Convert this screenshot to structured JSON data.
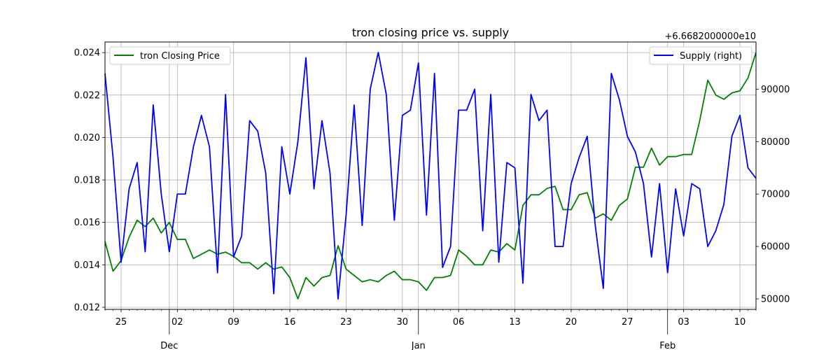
{
  "chart_data": {
    "type": "line",
    "title": "tron closing price vs. supply",
    "offset_label": "+6.6682000000e10",
    "grid": true,
    "x_start_date": "2023-11-23",
    "x_end_date": "2024-02-12",
    "x_ticks": [
      {
        "date": "2023-11-25",
        "label": "25"
      },
      {
        "date": "2023-12-02",
        "label": "02"
      },
      {
        "date": "2023-12-09",
        "label": "09"
      },
      {
        "date": "2023-12-16",
        "label": "16"
      },
      {
        "date": "2023-12-23",
        "label": "23"
      },
      {
        "date": "2023-12-30",
        "label": "30"
      },
      {
        "date": "2024-01-06",
        "label": "06"
      },
      {
        "date": "2024-01-13",
        "label": "13"
      },
      {
        "date": "2024-01-20",
        "label": "20"
      },
      {
        "date": "2024-01-27",
        "label": "27"
      },
      {
        "date": "2024-02-03",
        "label": "03"
      },
      {
        "date": "2024-02-10",
        "label": "10"
      }
    ],
    "x_month_labels": [
      {
        "date": "2023-12-01",
        "label": "Dec"
      },
      {
        "date": "2024-01-01",
        "label": "Jan"
      },
      {
        "date": "2024-02-01",
        "label": "Feb"
      }
    ],
    "y_left": {
      "ylim": [
        0.0119,
        0.0245
      ],
      "ticks": [
        0.012,
        0.014,
        0.016,
        0.018,
        0.02,
        0.022,
        0.024
      ],
      "tick_labels": [
        "0.012",
        "0.014",
        "0.016",
        "0.018",
        "0.020",
        "0.022",
        "0.024"
      ]
    },
    "y_right": {
      "ylim": [
        48000,
        99000
      ],
      "ticks": [
        50000,
        60000,
        70000,
        80000,
        90000
      ],
      "tick_labels": [
        "50000",
        "60000",
        "70000",
        "80000",
        "90000"
      ]
    },
    "series": [
      {
        "name": "tron Closing Price",
        "axis": "left",
        "color": "#008000",
        "legend_position": "top-left",
        "values": [
          0.0151,
          0.0137,
          0.0142,
          0.0153,
          0.0161,
          0.0158,
          0.0162,
          0.0155,
          0.016,
          0.0152,
          0.0152,
          0.0143,
          0.0145,
          0.0147,
          0.0145,
          0.0146,
          0.0144,
          0.0141,
          0.0141,
          0.0138,
          0.0141,
          0.0138,
          0.0139,
          0.0134,
          0.0124,
          0.0134,
          0.013,
          0.0134,
          0.0135,
          0.0149,
          0.0138,
          0.0135,
          0.0132,
          0.0133,
          0.0132,
          0.0135,
          0.0137,
          0.0133,
          0.0133,
          0.0132,
          0.0128,
          0.0134,
          0.0134,
          0.0135,
          0.0147,
          0.0144,
          0.014,
          0.014,
          0.0147,
          0.0146,
          0.015,
          0.0147,
          0.0168,
          0.0173,
          0.0173,
          0.0176,
          0.0177,
          0.0166,
          0.0166,
          0.0173,
          0.0174,
          0.0162,
          0.0164,
          0.0161,
          0.0168,
          0.0171,
          0.0186,
          0.0186,
          0.0195,
          0.0187,
          0.0191,
          0.0191,
          0.0192,
          0.0192,
          0.0208,
          0.0227,
          0.022,
          0.0218,
          0.0221,
          0.0222,
          0.0228,
          0.024
        ]
      },
      {
        "name": "Supply (right)",
        "axis": "right",
        "color": "#0000ff",
        "legend_position": "top-right",
        "values": [
          93000,
          77000,
          57000,
          71000,
          76000,
          59000,
          87000,
          70000,
          59000,
          70000,
          70000,
          79000,
          85000,
          79000,
          55000,
          89000,
          58000,
          62000,
          84000,
          82000,
          74000,
          51000,
          79000,
          70000,
          80000,
          96000,
          71000,
          84000,
          74000,
          50000,
          66000,
          87000,
          64000,
          90000,
          97000,
          89000,
          65000,
          85000,
          86000,
          95000,
          66000,
          93000,
          56000,
          60000,
          86000,
          86000,
          90000,
          63000,
          89000,
          57000,
          76000,
          75000,
          53000,
          89000,
          84000,
          86000,
          60000,
          60000,
          72000,
          77000,
          81000,
          64000,
          52000,
          93000,
          88000,
          81000,
          78000,
          72000,
          58000,
          72000,
          55000,
          71000,
          62000,
          72000,
          71000,
          60000,
          63000,
          68000,
          81000,
          85000,
          75000,
          73000
        ]
      }
    ]
  }
}
